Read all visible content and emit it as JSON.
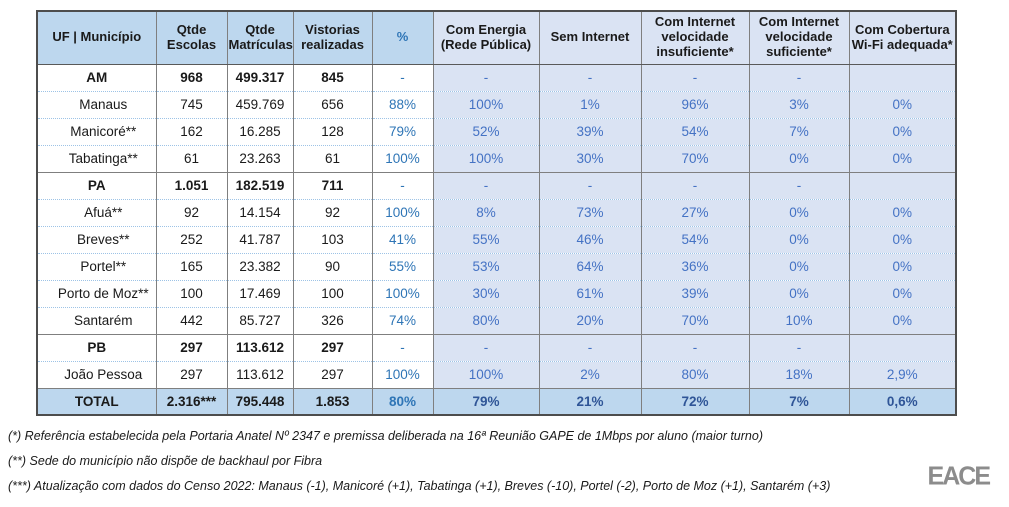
{
  "table": {
    "columns": [
      {
        "label": "UF | Município"
      },
      {
        "label": "Qtde Escolas"
      },
      {
        "label": "Qtde Matrículas"
      },
      {
        "label": "Vistorias realizadas"
      },
      {
        "label": "%"
      },
      {
        "label": "Com Energia (Rede Pública)"
      },
      {
        "label": "Sem Internet"
      },
      {
        "label": "Com Internet velocidade insuficiente*"
      },
      {
        "label": "Com Internet velocidade suficiente*"
      },
      {
        "label": "Com Cobertura Wi-Fi adequada*"
      }
    ],
    "rows": [
      {
        "type": "group",
        "cells": [
          "AM",
          "968",
          "499.317",
          "845",
          "-",
          "-",
          "-",
          "-",
          "-",
          ""
        ]
      },
      {
        "type": "muni",
        "cells": [
          "Manaus",
          "745",
          "459.769",
          "656",
          "88%",
          "100%",
          "1%",
          "96%",
          "3%",
          "0%"
        ]
      },
      {
        "type": "muni",
        "cells": [
          "Manicoré**",
          "162",
          "16.285",
          "128",
          "79%",
          "52%",
          "39%",
          "54%",
          "7%",
          "0%"
        ]
      },
      {
        "type": "muni",
        "cells": [
          "Tabatinga**",
          "61",
          "23.263",
          "61",
          "100%",
          "100%",
          "30%",
          "70%",
          "0%",
          "0%"
        ]
      },
      {
        "type": "group",
        "cells": [
          "PA",
          "1.051",
          "182.519",
          "711",
          "-",
          "-",
          "-",
          "-",
          "-",
          ""
        ]
      },
      {
        "type": "muni",
        "cells": [
          "Afuá**",
          "92",
          "14.154",
          "92",
          "100%",
          "8%",
          "73%",
          "27%",
          "0%",
          "0%"
        ]
      },
      {
        "type": "muni",
        "cells": [
          "Breves**",
          "252",
          "41.787",
          "103",
          "41%",
          "55%",
          "46%",
          "54%",
          "0%",
          "0%"
        ]
      },
      {
        "type": "muni",
        "cells": [
          "Portel**",
          "165",
          "23.382",
          "90",
          "55%",
          "53%",
          "64%",
          "36%",
          "0%",
          "0%"
        ]
      },
      {
        "type": "muni",
        "cells": [
          "Porto de Moz**",
          "100",
          "17.469",
          "100",
          "100%",
          "30%",
          "61%",
          "39%",
          "0%",
          "0%"
        ]
      },
      {
        "type": "muni",
        "cells": [
          "Santarém",
          "442",
          "85.727",
          "326",
          "74%",
          "80%",
          "20%",
          "70%",
          "10%",
          "0%"
        ]
      },
      {
        "type": "group",
        "cells": [
          "PB",
          "297",
          "113.612",
          "297",
          "-",
          "-",
          "-",
          "-",
          "-",
          ""
        ]
      },
      {
        "type": "muni",
        "cells": [
          "João Pessoa",
          "297",
          "113.612",
          "297",
          "100%",
          "100%",
          "2%",
          "80%",
          "18%",
          "2,9%"
        ]
      },
      {
        "type": "total",
        "cells": [
          "TOTAL",
          "2.316***",
          "795.448",
          "1.853",
          "80%",
          "79%",
          "21%",
          "72%",
          "7%",
          "0,6%"
        ]
      }
    ]
  },
  "footnotes": [
    "(*) Referência estabelecida pela Portaria Anatel Nº 2347 e premissa deliberada na 16ª Reunião GAPE de 1Mbps por aluno (maior turno)",
    "(**) Sede do município não dispõe de backhaul por Fibra",
    "(***) Atualização com dados do Censo 2022: Manaus (-1), Manicoré (+1), Tabatinga (+1), Breves (-10), Portel (-2), Porto de Moz (+1), Santarém (+3)"
  ],
  "logo": {
    "text": "EACE"
  },
  "colors": {
    "header_left_bg": "#BDD7EE",
    "header_right_bg": "#DAE3F3",
    "data_right_bg": "#DAE3F3",
    "total_row_bg": "#BDD7EE",
    "pct_blue": "#2E75B6",
    "right_values_blue": "#4472C4",
    "total_values_blue": "#2F5597",
    "dotted_separator": "#9DC3E6",
    "grid_gray": "#7F7F7F",
    "logo_gray": "#8C8C8C"
  }
}
